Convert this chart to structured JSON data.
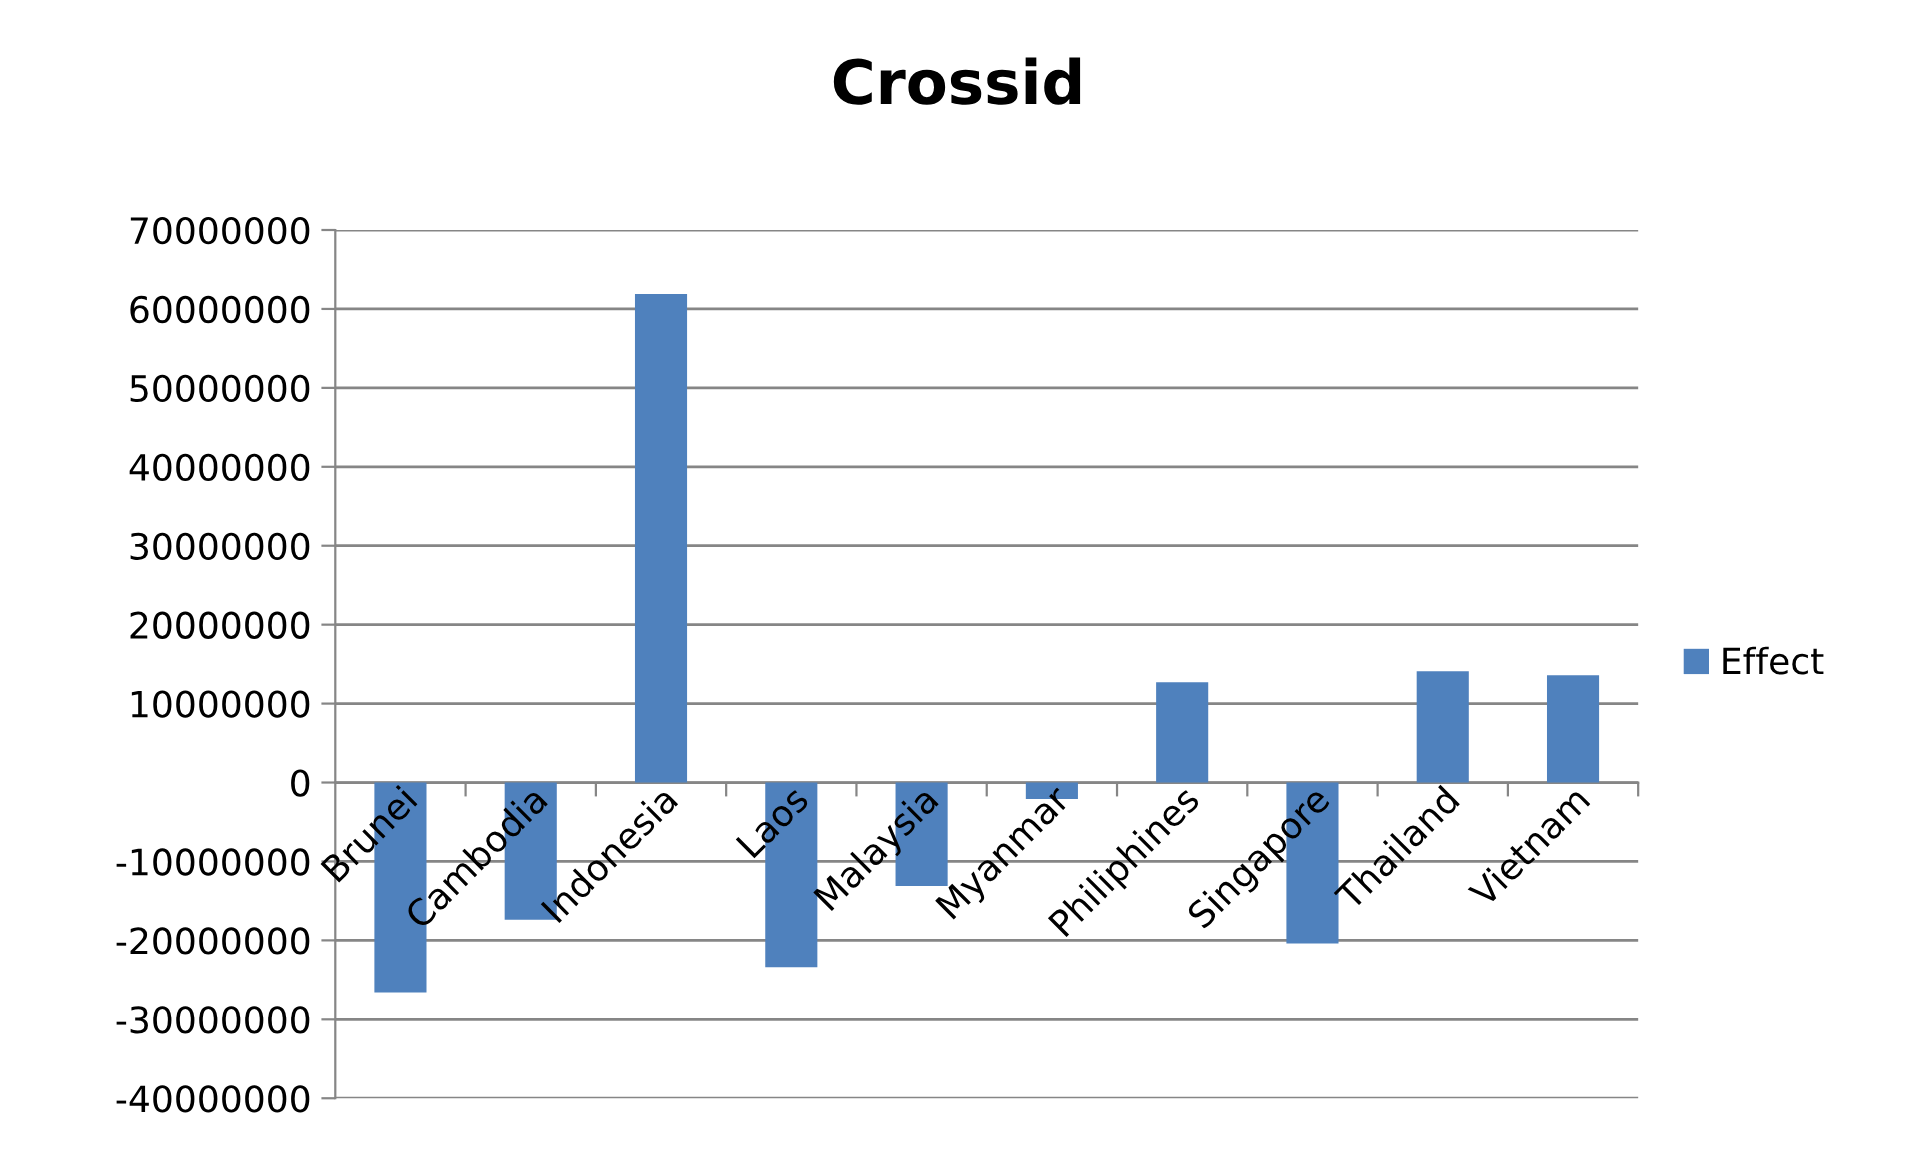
{
  "chart_data": {
    "type": "bar",
    "title": "Crossid",
    "categories": [
      "Brunei",
      "Cambodia",
      "Indonesia",
      "Laos",
      "Malaysia",
      "Myanmar",
      "Philiphines",
      "Singapore",
      "Thailand",
      "Vietnam"
    ],
    "series": [
      {
        "name": "Effect",
        "color": "#4f81bd",
        "values": [
          -26600000,
          -17400000,
          61900000,
          -23400000,
          -13100000,
          -2100000,
          12700000,
          -20400000,
          14100000,
          13600000
        ]
      }
    ],
    "ylim": [
      -40000000,
      70000000
    ],
    "yticks": [
      -40000000,
      -30000000,
      -20000000,
      -10000000,
      0,
      10000000,
      20000000,
      30000000,
      40000000,
      50000000,
      60000000,
      70000000
    ],
    "grid": "y",
    "legend": "right"
  }
}
